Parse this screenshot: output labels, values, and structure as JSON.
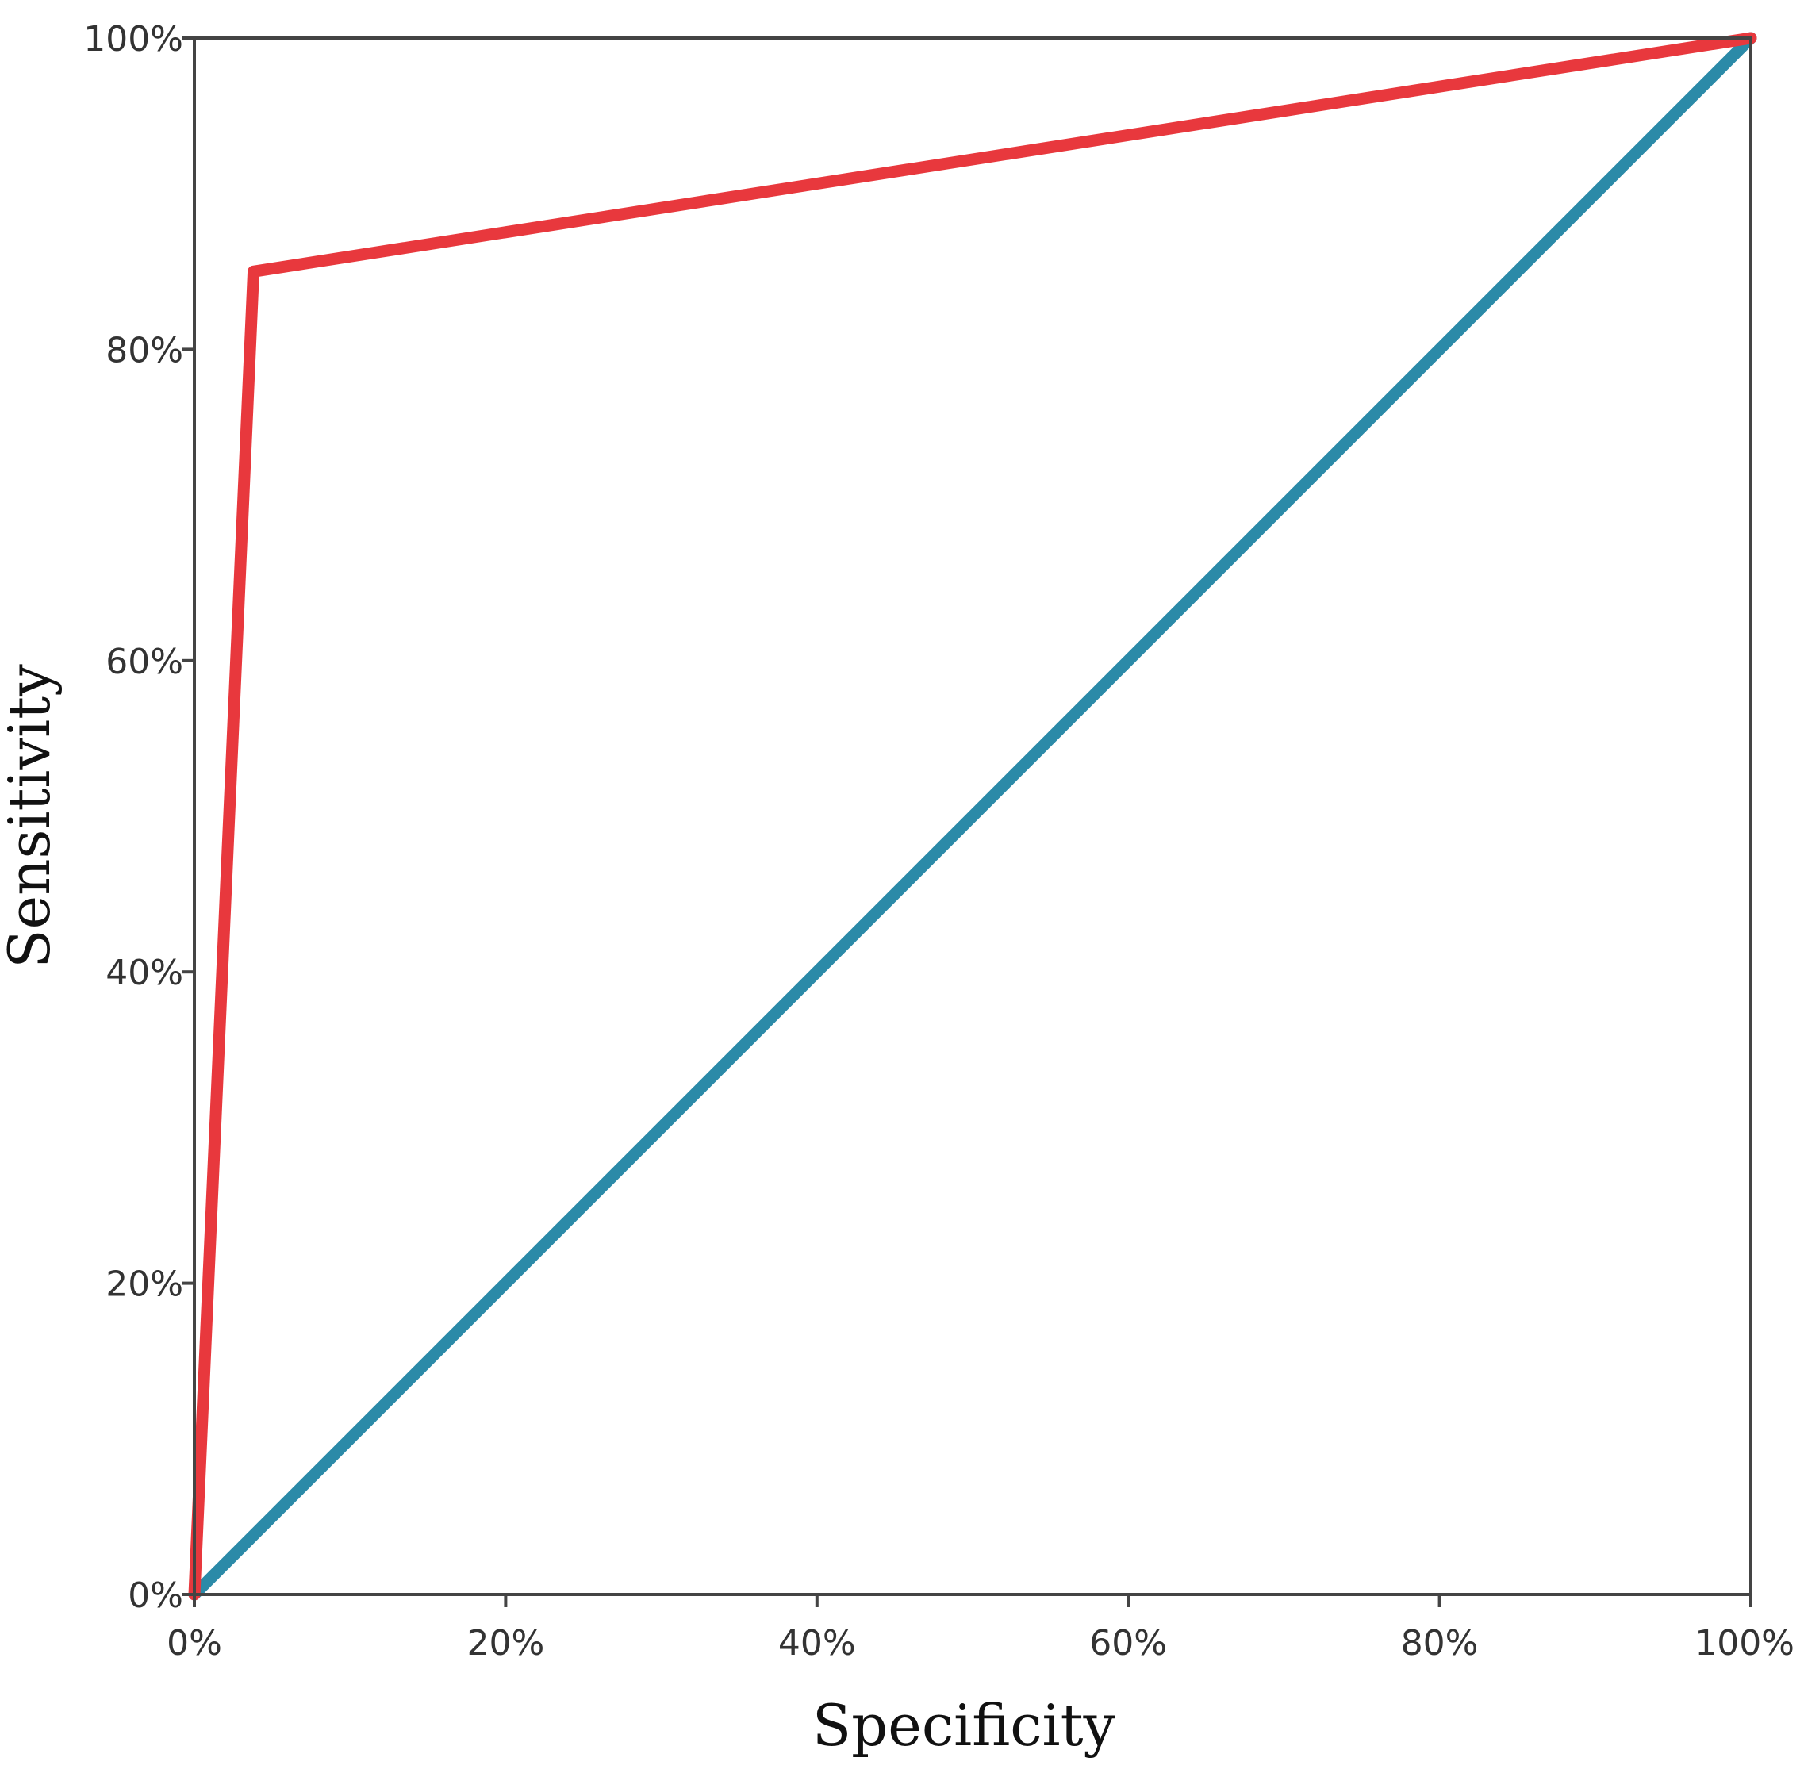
{
  "chart_data": {
    "type": "line",
    "title": "",
    "xlabel": "Specificity",
    "ylabel": "Sensitivity",
    "xlim": [
      0,
      100
    ],
    "ylim": [
      0,
      100
    ],
    "grid": false,
    "x_ticks": [
      "0%",
      "20%",
      "40%",
      "60%",
      "80%",
      "100%"
    ],
    "y_ticks": [
      "0%",
      "20%",
      "40%",
      "60%",
      "80%",
      "100%"
    ],
    "series": [
      {
        "color": "#e8383d",
        "x": [
          0,
          3.8,
          100
        ],
        "y": [
          0,
          85,
          100
        ]
      },
      {
        "color": "#2b8aa8",
        "x": [
          0,
          100
        ],
        "y": [
          0,
          100
        ]
      }
    ]
  }
}
